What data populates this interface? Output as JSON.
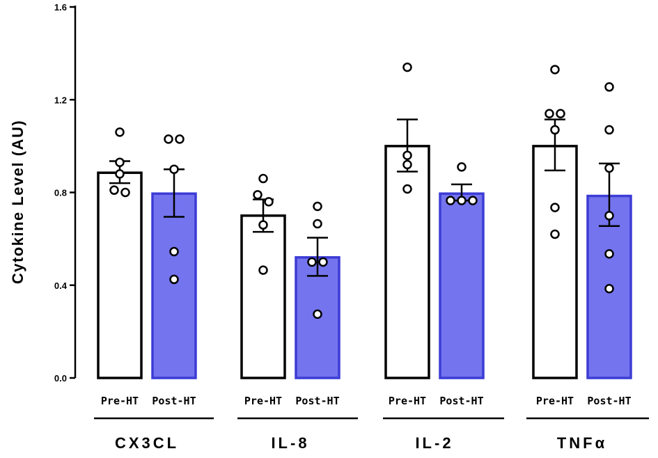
{
  "chart_data": {
    "type": "bar",
    "ylabel": "Cytokine Level (AU)",
    "ylim": [
      0,
      1.6
    ],
    "yticks": [
      "0.0",
      "0.4",
      "0.8",
      "1.2",
      "1.6"
    ],
    "ytick_values": [
      0,
      0.4,
      0.8,
      1.2,
      1.6
    ],
    "colors": {
      "pre": "#ffffff",
      "post": "#7474ee",
      "post_stroke": "#3c3cd6",
      "edge": "#000000"
    },
    "groups": [
      {
        "name": "CX3CL",
        "bars": [
          {
            "label": "Pre-HT",
            "kind": "pre",
            "value": 0.885,
            "sem_low": 0.84,
            "sem_high": 0.935,
            "points": [
              1.06,
              0.93,
              0.88,
              0.81,
              0.8
            ]
          },
          {
            "label": "Post-HT",
            "kind": "post",
            "value": 0.795,
            "sem_low": 0.695,
            "sem_high": 0.9,
            "points": [
              1.03,
              1.03,
              0.9,
              0.545,
              0.425
            ]
          }
        ]
      },
      {
        "name": "IL-8",
        "bars": [
          {
            "label": "Pre-HT",
            "kind": "pre",
            "value": 0.7,
            "sem_low": 0.63,
            "sem_high": 0.77,
            "points": [
              0.86,
              0.79,
              0.76,
              0.66,
              0.465
            ]
          },
          {
            "label": "Post-HT",
            "kind": "post",
            "value": 0.52,
            "sem_low": 0.44,
            "sem_high": 0.605,
            "points": [
              0.74,
              0.665,
              0.5,
              0.5,
              0.275
            ]
          }
        ]
      },
      {
        "name": "IL-2",
        "bars": [
          {
            "label": "Pre-HT",
            "kind": "pre",
            "value": 1.0,
            "sem_low": 0.89,
            "sem_high": 1.115,
            "points": [
              1.34,
              0.96,
              0.92,
              0.815
            ]
          },
          {
            "label": "Post-HT",
            "kind": "post",
            "value": 0.795,
            "sem_low": 0.765,
            "sem_high": 0.835,
            "points": [
              0.91,
              0.765,
              0.765,
              0.765
            ]
          }
        ]
      },
      {
        "name": "TNFα",
        "bars": [
          {
            "label": "Pre-HT",
            "kind": "pre",
            "value": 1.0,
            "sem_low": 0.895,
            "sem_high": 1.115,
            "points": [
              1.33,
              1.14,
              1.14,
              1.07,
              0.735,
              0.62
            ]
          },
          {
            "label": "Post-HT",
            "kind": "post",
            "value": 0.785,
            "sem_low": 0.655,
            "sem_high": 0.925,
            "points": [
              1.255,
              1.07,
              0.905,
              0.7,
              0.535,
              0.385
            ]
          }
        ]
      }
    ]
  }
}
